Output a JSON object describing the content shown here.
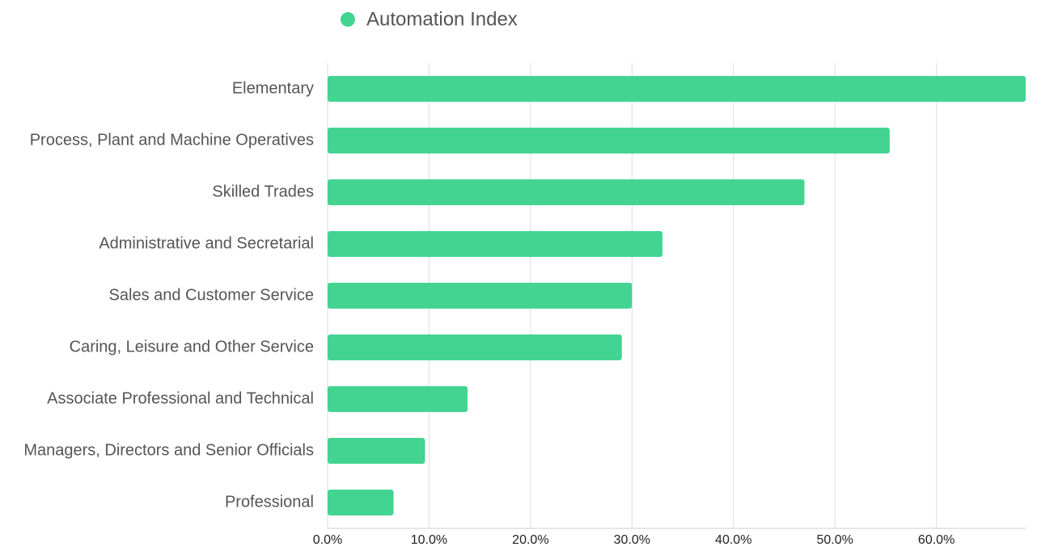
{
  "chart_data": {
    "type": "hbar",
    "categories": [
      "Elementary",
      "Process, Plant and Machine Operatives",
      "Skilled Trades",
      "Administrative and Secretarial",
      "Sales and Customer Service",
      "Caring, Leisure and Other Service",
      "Associate Professional and Technical",
      "Managers, Directors and Senior Officials",
      "Professional"
    ],
    "series": [
      {
        "name": "Automation Index",
        "color": "#43d492",
        "values": [
          68.8,
          55.4,
          47.0,
          33.0,
          30.0,
          29.0,
          13.8,
          9.6,
          6.5
        ]
      }
    ],
    "xlim": [
      0,
      68.8
    ],
    "xticks": [
      {
        "value": 0,
        "label": "0.0%"
      },
      {
        "value": 10,
        "label": "10.0%"
      },
      {
        "value": 20,
        "label": "20.0%"
      },
      {
        "value": 30,
        "label": "30.0%"
      },
      {
        "value": 40,
        "label": "40.0%"
      },
      {
        "value": 50,
        "label": "50.0%"
      },
      {
        "value": 60,
        "label": "60.0%"
      }
    ],
    "grid": true,
    "legend": "top"
  }
}
